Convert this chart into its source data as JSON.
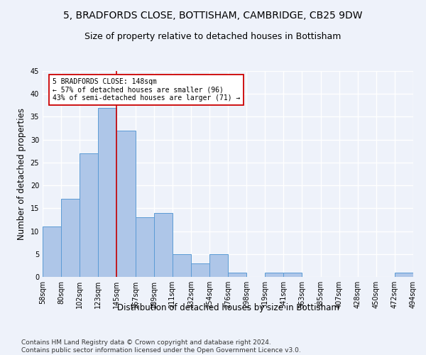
{
  "title": "5, BRADFORDS CLOSE, BOTTISHAM, CAMBRIDGE, CB25 9DW",
  "subtitle": "Size of property relative to detached houses in Bottisham",
  "xlabel": "Distribution of detached houses by size in Bottisham",
  "ylabel": "Number of detached properties",
  "bar_values": [
    11,
    17,
    27,
    37,
    32,
    13,
    14,
    5,
    3,
    5,
    1,
    0,
    1,
    1,
    0,
    0,
    0,
    0,
    0,
    1
  ],
  "bin_labels": [
    "58sqm",
    "80sqm",
    "102sqm",
    "123sqm",
    "145sqm",
    "167sqm",
    "189sqm",
    "211sqm",
    "232sqm",
    "254sqm",
    "276sqm",
    "298sqm",
    "319sqm",
    "341sqm",
    "363sqm",
    "385sqm",
    "407sqm",
    "428sqm",
    "450sqm",
    "472sqm",
    "494sqm"
  ],
  "bar_color": "#aec6e8",
  "bar_edge_color": "#5b9bd5",
  "reference_line_color": "#cc0000",
  "annotation_text": "5 BRADFORDS CLOSE: 148sqm\n← 57% of detached houses are smaller (96)\n43% of semi-detached houses are larger (71) →",
  "annotation_box_color": "#cc0000",
  "ylim": [
    0,
    45
  ],
  "yticks": [
    0,
    5,
    10,
    15,
    20,
    25,
    30,
    35,
    40,
    45
  ],
  "footnote": "Contains HM Land Registry data © Crown copyright and database right 2024.\nContains public sector information licensed under the Open Government Licence v3.0.",
  "bg_color": "#eef2fa",
  "grid_color": "#ffffff",
  "title_fontsize": 10,
  "subtitle_fontsize": 9,
  "axis_label_fontsize": 8.5,
  "tick_fontsize": 7,
  "footnote_fontsize": 6.5
}
